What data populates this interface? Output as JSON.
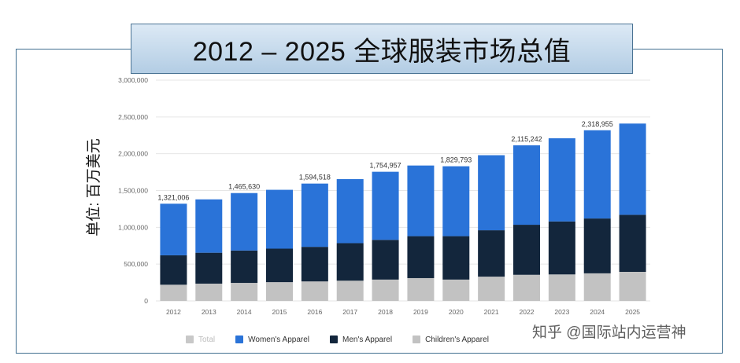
{
  "title": "2012 – 2025 全球服装市场总值",
  "y_axis_label": "单位: 百万美元",
  "watermark": "知乎 @国际站内运营神",
  "colors": {
    "women": "#2a73d8",
    "men": "#13263c",
    "children": "#c2c2c2",
    "total": "#c8c8c8"
  },
  "legend": [
    {
      "label": "Total",
      "color_key": "total"
    },
    {
      "label": "Women's Apparel",
      "color_key": "women"
    },
    {
      "label": "Men's Apparel",
      "color_key": "men"
    },
    {
      "label": "Children's Apparel",
      "color_key": "children"
    }
  ],
  "chart_data": {
    "type": "bar",
    "stacked": true,
    "categories": [
      "2012",
      "2013",
      "2014",
      "2015",
      "2016",
      "2017",
      "2018",
      "2019",
      "2020",
      "2021",
      "2022",
      "2023",
      "2024",
      "2025"
    ],
    "series": [
      {
        "name": "Children's Apparel",
        "color_key": "children",
        "values": [
          220000,
          235000,
          245000,
          255000,
          265000,
          275000,
          290000,
          310000,
          290000,
          330000,
          355000,
          360000,
          375000,
          395000
        ]
      },
      {
        "name": "Men's Apparel",
        "color_key": "men",
        "values": [
          400000,
          420000,
          440000,
          455000,
          470000,
          510000,
          540000,
          570000,
          590000,
          630000,
          680000,
          720000,
          745000,
          775000
        ]
      },
      {
        "name": "Women's Apparel",
        "color_key": "women",
        "values": [
          701006,
          725000,
          780630,
          800000,
          859518,
          870000,
          924957,
          960000,
          949793,
          1020000,
          1080242,
          1130000,
          1198955,
          1240000
        ]
      }
    ],
    "data_labels": [
      {
        "category": "2012",
        "text": "1,321,006"
      },
      {
        "category": "2014",
        "text": "1,465,630"
      },
      {
        "category": "2016",
        "text": "1,594,518"
      },
      {
        "category": "2018",
        "text": "1,754,957"
      },
      {
        "category": "2020",
        "text": "1,829,793"
      },
      {
        "category": "2022",
        "text": "2,115,242"
      },
      {
        "category": "2024",
        "text": "2,318,955"
      }
    ],
    "y_ticks": [
      "0",
      "500,000",
      "1,000,000",
      "1,500,000",
      "2,000,000",
      "2,500,000",
      "3,000,000"
    ],
    "ylim": [
      0,
      3000000
    ],
    "title": "2012 – 2025 全球服装市场总值",
    "ylabel": "单位: 百万美元",
    "xlabel": "",
    "grid": true
  }
}
